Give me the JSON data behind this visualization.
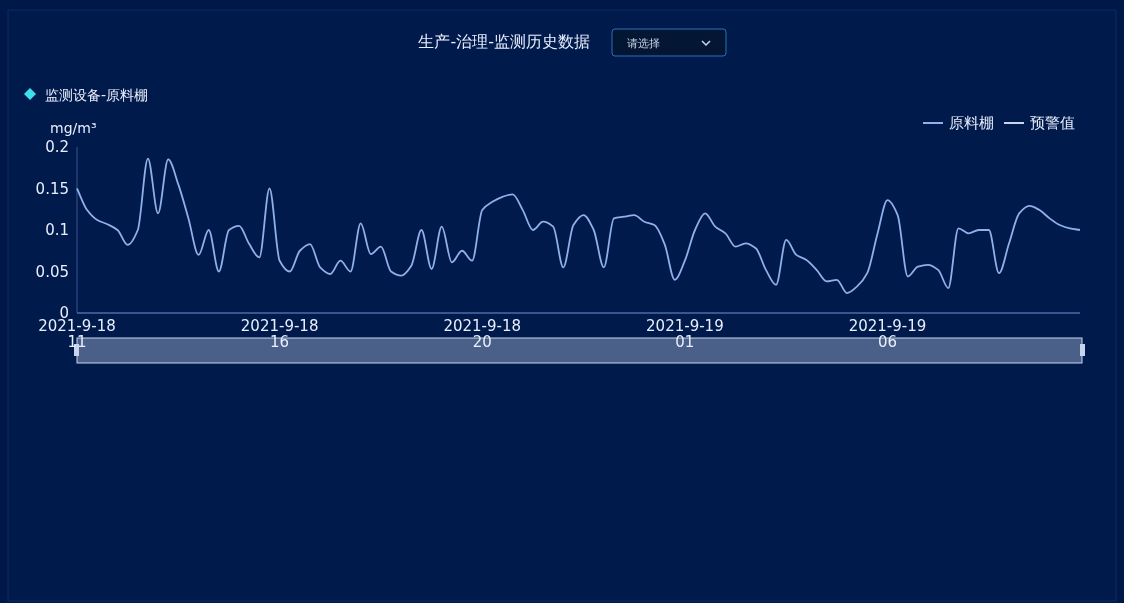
{
  "chart_data": {
    "type": "line",
    "title": "生产-治理-监测历史数据",
    "subtitle": "监测设备-原料棚",
    "ylabel": "mg/m³",
    "annotations": [
      "请选择"
    ],
    "categories": [
      "2021-9-18\n11",
      null,
      null,
      null,
      null,
      null,
      null,
      null,
      null,
      null,
      null,
      null,
      null,
      null,
      null,
      null,
      null,
      null,
      null,
      null,
      "2021-9-18\n16",
      null,
      null,
      null,
      null,
      null,
      null,
      null,
      null,
      null,
      null,
      null,
      null,
      null,
      null,
      null,
      null,
      null,
      null,
      null,
      "2021-9-18\n20",
      null,
      null,
      null,
      null,
      null,
      null,
      null,
      null,
      null,
      null,
      null,
      null,
      null,
      null,
      null,
      null,
      null,
      null,
      null,
      "2021-9-19\n01",
      null,
      null,
      null,
      null,
      null,
      null,
      null,
      null,
      null,
      null,
      null,
      null,
      null,
      null,
      null,
      null,
      null,
      null,
      null,
      "2021-9-19\n06",
      null,
      null,
      null,
      null,
      null,
      null,
      null,
      null,
      null,
      null,
      null,
      null,
      null,
      null,
      null,
      null,
      null,
      null,
      null
    ],
    "series": [
      {
        "name": "原料棚",
        "color": "#8fb0e8",
        "values": [
          0.15,
          0.124,
          0.112,
          0.107,
          0.1,
          0.082,
          0.1,
          0.186,
          0.12,
          0.185,
          0.155,
          0.114,
          0.07,
          0.1,
          0.05,
          0.1,
          0.105,
          0.083,
          0.067,
          0.15,
          0.063,
          0.05,
          0.075,
          0.083,
          0.055,
          0.047,
          0.063,
          0.05,
          0.108,
          0.071,
          0.08,
          0.05,
          0.045,
          0.057,
          0.1,
          0.053,
          0.104,
          0.061,
          0.075,
          0.063,
          0.124,
          0.134,
          0.14,
          0.143,
          0.124,
          0.1,
          0.11,
          0.104,
          0.055,
          0.106,
          0.118,
          0.1,
          0.055,
          0.114,
          0.116,
          0.118,
          0.11,
          0.106,
          0.083,
          0.04,
          0.063,
          0.1,
          0.12,
          0.104,
          0.096,
          0.08,
          0.084,
          0.078,
          0.052,
          0.034,
          0.088,
          0.07,
          0.064,
          0.052,
          0.038,
          0.04,
          0.024,
          0.032,
          0.048,
          0.095,
          0.136,
          0.118,
          0.044,
          0.056,
          0.058,
          0.052,
          0.03,
          0.102,
          0.096,
          0.1,
          0.1,
          0.048,
          0.084,
          0.12,
          0.129,
          0.124,
          0.114,
          0.106,
          0.102,
          0.1
        ]
      },
      {
        "name": "预警值",
        "color": "#c8d4ec",
        "values": [
          null,
          null,
          null,
          null,
          null,
          null,
          null,
          null,
          null,
          null,
          null,
          null,
          null,
          null,
          null,
          null,
          null,
          null,
          null,
          null,
          null,
          null,
          null,
          null,
          null,
          null,
          null,
          null,
          null,
          null,
          null,
          null,
          null,
          null,
          null,
          null,
          null,
          null,
          null,
          null,
          null,
          null,
          null,
          null,
          null,
          null,
          null,
          null,
          null,
          null,
          null,
          null,
          null,
          null,
          null,
          null,
          null,
          null,
          null,
          null,
          null,
          null,
          null,
          null,
          null,
          null,
          null,
          null,
          null,
          null,
          null,
          null,
          null,
          null,
          null,
          null,
          null,
          null,
          null,
          null,
          null,
          null,
          null,
          null,
          null,
          null,
          null,
          null,
          null,
          null,
          null,
          null,
          null,
          null,
          null,
          null,
          null,
          null,
          null,
          null
        ]
      }
    ],
    "ylim": [
      0,
      0.2
    ],
    "yticks": [
      0,
      0.05,
      0.1,
      0.15,
      0.2
    ],
    "grid": false,
    "legend": "top right",
    "marker": "none",
    "line_style": "solid"
  }
}
